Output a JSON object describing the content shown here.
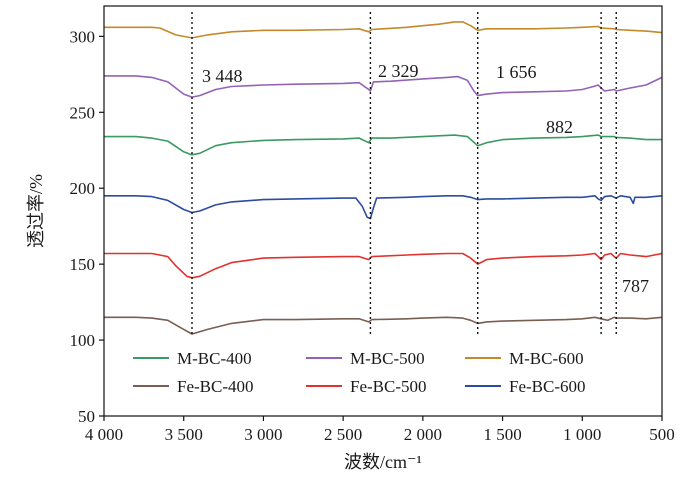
{
  "chart_data": {
    "type": "line",
    "xlabel": "波数/cm⁻¹",
    "ylabel": "透过率/%",
    "xlim": [
      4000,
      500
    ],
    "ylim": [
      50,
      320
    ],
    "x_reversed": true,
    "x_ticks": [
      4000,
      3500,
      3000,
      2500,
      2000,
      1500,
      1000,
      500
    ],
    "x_tick_labels": [
      "4 000",
      "3 500",
      "3 000",
      "2 500",
      "2 000",
      "1 500",
      "1 000",
      "500"
    ],
    "y_ticks": [
      50,
      100,
      150,
      200,
      250,
      300
    ],
    "y_tick_labels": [
      "50",
      "100",
      "150",
      "200",
      "250",
      "300"
    ],
    "grid": false,
    "legend_placement": "bottom-center",
    "reference_lines": [
      {
        "x": 3448,
        "label": "3 448"
      },
      {
        "x": 2329,
        "label": "2 329"
      },
      {
        "x": 1656,
        "label": "1 656"
      },
      {
        "x": 882,
        "label": "882"
      },
      {
        "x": 787,
        "label": "787"
      }
    ],
    "series": [
      {
        "name": "M-BC-400",
        "color": "#3a9a62",
        "points": [
          [
            4000,
            234
          ],
          [
            3800,
            234
          ],
          [
            3700,
            233
          ],
          [
            3600,
            231
          ],
          [
            3500,
            224
          ],
          [
            3450,
            222
          ],
          [
            3400,
            223
          ],
          [
            3300,
            228
          ],
          [
            3200,
            230
          ],
          [
            3000,
            231.5
          ],
          [
            2800,
            232
          ],
          [
            2500,
            232.5
          ],
          [
            2400,
            233
          ],
          [
            2340,
            230
          ],
          [
            2320,
            233
          ],
          [
            2200,
            233
          ],
          [
            2000,
            234
          ],
          [
            1800,
            235
          ],
          [
            1720,
            234
          ],
          [
            1656,
            228
          ],
          [
            1600,
            230
          ],
          [
            1500,
            232
          ],
          [
            1300,
            233
          ],
          [
            1100,
            233.5
          ],
          [
            1000,
            234
          ],
          [
            900,
            235
          ],
          [
            882,
            234
          ],
          [
            800,
            234
          ],
          [
            787,
            233.5
          ],
          [
            700,
            233
          ],
          [
            600,
            232
          ],
          [
            500,
            232
          ]
        ]
      },
      {
        "name": "M-BC-500",
        "color": "#9462b5",
        "points": [
          [
            4000,
            274
          ],
          [
            3800,
            274
          ],
          [
            3700,
            273
          ],
          [
            3600,
            270
          ],
          [
            3500,
            262
          ],
          [
            3448,
            260
          ],
          [
            3400,
            261
          ],
          [
            3300,
            265
          ],
          [
            3200,
            267
          ],
          [
            3000,
            268
          ],
          [
            2800,
            268.5
          ],
          [
            2500,
            269
          ],
          [
            2400,
            269.5
          ],
          [
            2340,
            265
          ],
          [
            2329,
            264
          ],
          [
            2310,
            270
          ],
          [
            2200,
            270.5
          ],
          [
            2000,
            272
          ],
          [
            1850,
            273
          ],
          [
            1780,
            273.5
          ],
          [
            1720,
            271
          ],
          [
            1680,
            264
          ],
          [
            1656,
            261
          ],
          [
            1600,
            262
          ],
          [
            1500,
            263
          ],
          [
            1300,
            263.5
          ],
          [
            1100,
            264
          ],
          [
            1000,
            265
          ],
          [
            930,
            267
          ],
          [
            900,
            268
          ],
          [
            882,
            266
          ],
          [
            860,
            264
          ],
          [
            800,
            265
          ],
          [
            787,
            264
          ],
          [
            700,
            266
          ],
          [
            600,
            268
          ],
          [
            500,
            273
          ]
        ]
      },
      {
        "name": "M-BC-600",
        "color": "#c48a2a",
        "points": [
          [
            4000,
            306
          ],
          [
            3700,
            306
          ],
          [
            3650,
            305.5
          ],
          [
            3550,
            301
          ],
          [
            3448,
            299
          ],
          [
            3350,
            301
          ],
          [
            3200,
            303
          ],
          [
            3000,
            304
          ],
          [
            2800,
            304
          ],
          [
            2500,
            304.5
          ],
          [
            2400,
            305
          ],
          [
            2340,
            303
          ],
          [
            2320,
            304.5
          ],
          [
            2100,
            306
          ],
          [
            2000,
            307
          ],
          [
            1900,
            308
          ],
          [
            1800,
            309.5
          ],
          [
            1750,
            309.5
          ],
          [
            1700,
            307
          ],
          [
            1656,
            304
          ],
          [
            1600,
            305
          ],
          [
            1500,
            305
          ],
          [
            1300,
            305
          ],
          [
            1100,
            305.5
          ],
          [
            1000,
            306
          ],
          [
            900,
            306.5
          ],
          [
            882,
            305.5
          ],
          [
            800,
            305
          ],
          [
            787,
            304.5
          ],
          [
            700,
            304
          ],
          [
            600,
            303.5
          ],
          [
            500,
            302.5
          ]
        ]
      },
      {
        "name": "Fe-BC-400",
        "color": "#7a5e52",
        "points": [
          [
            4000,
            115
          ],
          [
            3800,
            115
          ],
          [
            3700,
            114.5
          ],
          [
            3600,
            113
          ],
          [
            3500,
            107
          ],
          [
            3448,
            104
          ],
          [
            3350,
            107
          ],
          [
            3200,
            111
          ],
          [
            3000,
            113.5
          ],
          [
            2800,
            113.5
          ],
          [
            2500,
            114
          ],
          [
            2400,
            114
          ],
          [
            2340,
            112
          ],
          [
            2320,
            113.5
          ],
          [
            2100,
            114
          ],
          [
            2000,
            114.5
          ],
          [
            1850,
            115
          ],
          [
            1750,
            114.5
          ],
          [
            1700,
            113
          ],
          [
            1656,
            111
          ],
          [
            1600,
            112
          ],
          [
            1500,
            112.5
          ],
          [
            1300,
            113
          ],
          [
            1100,
            113.5
          ],
          [
            1000,
            114
          ],
          [
            920,
            115
          ],
          [
            882,
            114
          ],
          [
            840,
            113
          ],
          [
            800,
            115
          ],
          [
            787,
            114.5
          ],
          [
            700,
            114.5
          ],
          [
            600,
            114
          ],
          [
            500,
            115
          ]
        ]
      },
      {
        "name": "Fe-BC-500",
        "color": "#e0322e",
        "points": [
          [
            4000,
            157
          ],
          [
            3800,
            157
          ],
          [
            3700,
            157
          ],
          [
            3600,
            155
          ],
          [
            3550,
            149
          ],
          [
            3480,
            142
          ],
          [
            3448,
            141
          ],
          [
            3400,
            142
          ],
          [
            3300,
            147
          ],
          [
            3200,
            151
          ],
          [
            3000,
            154
          ],
          [
            2800,
            154.5
          ],
          [
            2500,
            155
          ],
          [
            2400,
            155
          ],
          [
            2340,
            153
          ],
          [
            2320,
            155
          ],
          [
            2100,
            156
          ],
          [
            2000,
            156.5
          ],
          [
            1850,
            157
          ],
          [
            1750,
            157
          ],
          [
            1700,
            154
          ],
          [
            1656,
            150
          ],
          [
            1600,
            153
          ],
          [
            1500,
            154
          ],
          [
            1300,
            155
          ],
          [
            1100,
            155.5
          ],
          [
            1000,
            156
          ],
          [
            920,
            157
          ],
          [
            900,
            155
          ],
          [
            882,
            153
          ],
          [
            860,
            156
          ],
          [
            820,
            157
          ],
          [
            800,
            155
          ],
          [
            787,
            154
          ],
          [
            760,
            157
          ],
          [
            700,
            156
          ],
          [
            600,
            155
          ],
          [
            500,
            157
          ]
        ]
      },
      {
        "name": "Fe-BC-600",
        "color": "#2c4c9e",
        "points": [
          [
            4000,
            195
          ],
          [
            3800,
            195
          ],
          [
            3700,
            194.5
          ],
          [
            3600,
            192
          ],
          [
            3500,
            186
          ],
          [
            3448,
            184
          ],
          [
            3400,
            185
          ],
          [
            3300,
            189
          ],
          [
            3200,
            191
          ],
          [
            3000,
            192.5
          ],
          [
            2800,
            193
          ],
          [
            2500,
            193.5
          ],
          [
            2420,
            193.5
          ],
          [
            2380,
            188
          ],
          [
            2350,
            181
          ],
          [
            2329,
            180
          ],
          [
            2310,
            187
          ],
          [
            2290,
            193.5
          ],
          [
            2100,
            194
          ],
          [
            2000,
            194.5
          ],
          [
            1850,
            195
          ],
          [
            1750,
            195
          ],
          [
            1700,
            194
          ],
          [
            1656,
            192.5
          ],
          [
            1600,
            193
          ],
          [
            1500,
            193
          ],
          [
            1300,
            193.5
          ],
          [
            1100,
            194
          ],
          [
            1000,
            194
          ],
          [
            920,
            195
          ],
          [
            900,
            193
          ],
          [
            882,
            192
          ],
          [
            860,
            194.5
          ],
          [
            820,
            195
          ],
          [
            800,
            194
          ],
          [
            787,
            193.5
          ],
          [
            760,
            195
          ],
          [
            700,
            194
          ],
          [
            680,
            190
          ],
          [
            670,
            194
          ],
          [
            600,
            194
          ],
          [
            500,
            195
          ]
        ]
      }
    ]
  }
}
